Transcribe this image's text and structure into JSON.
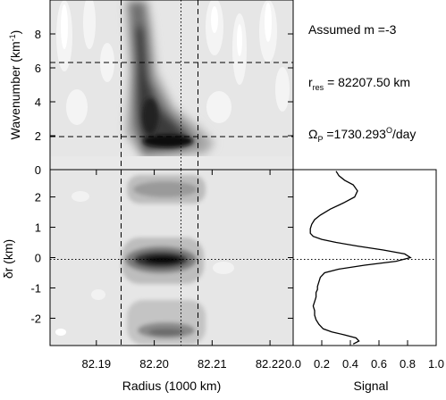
{
  "chart_data": [
    {
      "type": "heatmap",
      "panel": "wavelet-top",
      "ylabel_base": "Wavenumber (km",
      "ylabel_exp": "-1",
      "ylabel_close": ")",
      "xlim": [
        82.182,
        82.224
      ],
      "ylim": [
        0,
        10
      ],
      "yticks": [
        0,
        2,
        4,
        6,
        8
      ],
      "hlines": [
        2.1,
        6.3
      ],
      "vlines_dashed": [
        82.1855,
        82.2105
      ],
      "vline_dotted": 82.2082,
      "colormap": "grayscale, black = strong"
    },
    {
      "type": "heatmap",
      "panel": "phase-bottom",
      "ylabel": "δr (km)",
      "xlabel": "Radius (1000 km)",
      "xlim": [
        82.182,
        82.224
      ],
      "xticks": [
        82.19,
        82.2,
        82.21,
        82.22
      ],
      "xtick_labels": [
        "82.19",
        "82.20",
        "82.21",
        "82.22"
      ],
      "ylim": [
        -2.9,
        2.9
      ],
      "yticks": [
        -2,
        -1,
        0,
        1,
        2
      ],
      "hline_dotted": 0,
      "vlines_dashed": [
        82.1855,
        82.2105
      ],
      "vline_dotted": 82.2082
    },
    {
      "type": "line",
      "panel": "signal",
      "xlabel": "Signal",
      "xlim": [
        0,
        1
      ],
      "xticks": [
        0,
        0.2,
        0.4,
        0.6,
        0.8,
        1.0
      ],
      "xtick_labels": [
        "0.0",
        "0.2",
        "0.4",
        "0.6",
        "0.8",
        "1.0"
      ],
      "ylim": [
        -2.9,
        2.9
      ],
      "hline_dotted": 0,
      "x": [
        0.3,
        0.32,
        0.36,
        0.42,
        0.45,
        0.43,
        0.35,
        0.26,
        0.19,
        0.15,
        0.13,
        0.12,
        0.12,
        0.14,
        0.2,
        0.3,
        0.45,
        0.63,
        0.78,
        0.82,
        0.72,
        0.5,
        0.32,
        0.22,
        0.19,
        0.18,
        0.17,
        0.17,
        0.16,
        0.16,
        0.15,
        0.14,
        0.15,
        0.15,
        0.16,
        0.18,
        0.21,
        0.27,
        0.36,
        0.44,
        0.46,
        0.42
      ],
      "y": [
        2.85,
        2.7,
        2.55,
        2.4,
        2.2,
        2.0,
        1.8,
        1.6,
        1.4,
        1.25,
        1.1,
        0.95,
        0.8,
        0.7,
        0.6,
        0.5,
        0.38,
        0.25,
        0.12,
        0.0,
        -0.12,
        -0.25,
        -0.38,
        -0.5,
        -0.65,
        -0.8,
        -0.95,
        -1.05,
        -1.15,
        -1.3,
        -1.45,
        -1.6,
        -1.75,
        -1.9,
        -2.05,
        -2.2,
        -2.35,
        -2.45,
        -2.55,
        -2.65,
        -2.75,
        -2.85
      ]
    }
  ],
  "annotations": {
    "assumed_m": "Assumed m =-3",
    "rres_symbol": "r",
    "rres_sub": "res",
    "rres_value": " = 82207.50 km",
    "omega_symbol": "Ω",
    "omega_sub": "P",
    "omega_value": " =1730.293",
    "omega_sup": "O",
    "omega_unit": "/day"
  }
}
